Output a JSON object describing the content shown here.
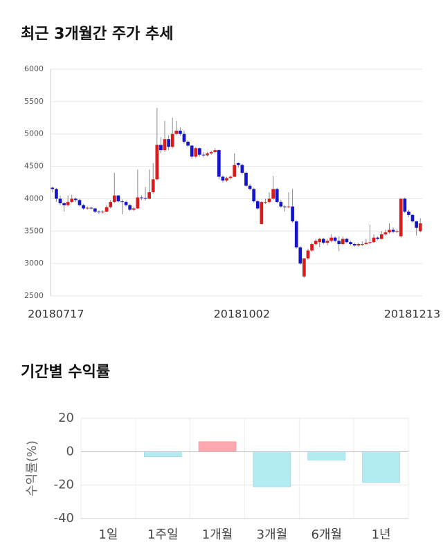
{
  "chart_data": [
    {
      "type": "candlestick",
      "title": "최근 3개월간 주가 추세",
      "up_color": "#d91c1c",
      "down_color": "#1515c8",
      "grid": true,
      "ylim": [
        2500,
        6000
      ],
      "yticks": [
        2500,
        3000,
        3500,
        4000,
        4500,
        5000,
        5500,
        6000
      ],
      "categories": [
        "20180717",
        null,
        null,
        null,
        null,
        null,
        null,
        null,
        null,
        null,
        null,
        null,
        null,
        null,
        null,
        null,
        null,
        null,
        null,
        null,
        null,
        null,
        null,
        null,
        null,
        null,
        null,
        null,
        null,
        null,
        null,
        null,
        null,
        null,
        null,
        null,
        null,
        null,
        null,
        null,
        null,
        null,
        null,
        null,
        null,
        null,
        null,
        null,
        "20181002",
        null,
        null,
        null,
        null,
        null,
        null,
        null,
        null,
        null,
        null,
        null,
        null,
        null,
        null,
        null,
        null,
        null,
        null,
        null,
        null,
        null,
        null,
        null,
        null,
        null,
        null,
        null,
        null,
        null,
        null,
        null,
        null,
        null,
        null,
        null,
        null,
        null,
        null,
        null,
        null,
        null,
        null,
        null,
        "20181213",
        null,
        null,
        null
      ],
      "open": [
        4170,
        4150,
        4000,
        3930,
        3900,
        3950,
        4000,
        3980,
        3900,
        3850,
        3860,
        3850,
        3800,
        3790,
        3800,
        3870,
        3950,
        4050,
        3960,
        3950,
        3900,
        3830,
        3850,
        4020,
        4010,
        4000,
        4100,
        4300,
        4830,
        4750,
        4920,
        4800,
        5000,
        5050,
        5000,
        4880,
        4820,
        4650,
        4780,
        4680,
        4670,
        4700,
        4720,
        4750,
        4340,
        4280,
        4320,
        4340,
        4550,
        4520,
        4400,
        4200,
        4150,
        3960,
        3610,
        3940,
        3950,
        4000,
        4150,
        3950,
        3880,
        3870,
        3880,
        3650,
        3250,
        2800,
        3080,
        3200,
        3300,
        3330,
        3380,
        3320,
        3350,
        3400,
        3350,
        3300,
        3380,
        3330,
        3300,
        3280,
        3290,
        3300,
        3320,
        3330,
        3400,
        3380,
        3450,
        3480,
        3520,
        3490,
        3420,
        4000,
        3800,
        3750,
        3650,
        3500
      ],
      "high": [
        4190,
        4170,
        4050,
        3950,
        4050,
        4060,
        4020,
        4000,
        3920,
        3880,
        3880,
        3860,
        3820,
        3820,
        3900,
        3980,
        4400,
        4060,
        3990,
        3970,
        3920,
        3880,
        4450,
        4050,
        4180,
        4450,
        4550,
        5400,
        4950,
        5200,
        4980,
        5250,
        5200,
        5100,
        5050,
        4900,
        4830,
        4800,
        4790,
        4720,
        4720,
        4740,
        4780,
        4760,
        4360,
        4340,
        4360,
        4700,
        4560,
        4540,
        4420,
        4230,
        4170,
        3980,
        3960,
        4000,
        4100,
        4350,
        4170,
        3980,
        3900,
        4100,
        4150,
        3670,
        3270,
        3080,
        3230,
        3320,
        3380,
        3400,
        3400,
        3380,
        3450,
        3420,
        3420,
        3420,
        3400,
        3350,
        3320,
        3320,
        3340,
        3380,
        3600,
        3450,
        3420,
        3500,
        3520,
        3620,
        3560,
        3530,
        4000,
        4020,
        3830,
        3760,
        3660,
        3700
      ],
      "low": [
        4100,
        3950,
        3900,
        3800,
        3880,
        3930,
        3950,
        3880,
        3830,
        3830,
        3830,
        3780,
        3770,
        3770,
        3790,
        3850,
        3930,
        3940,
        3760,
        3880,
        3810,
        3810,
        3840,
        3980,
        3970,
        3990,
        4080,
        4280,
        4700,
        4720,
        4750,
        4780,
        4980,
        4970,
        4850,
        4800,
        4620,
        4630,
        4650,
        4640,
        4650,
        4680,
        4700,
        4300,
        4250,
        4260,
        4300,
        4330,
        4480,
        4380,
        4180,
        4130,
        3940,
        3830,
        3600,
        3920,
        3930,
        3980,
        3930,
        3860,
        3800,
        3850,
        3630,
        3230,
        2980,
        2780,
        3060,
        3180,
        3280,
        3250,
        3300,
        3280,
        3330,
        3330,
        3190,
        3290,
        3310,
        3280,
        3260,
        3260,
        3270,
        3290,
        3300,
        3320,
        3360,
        3370,
        3430,
        3460,
        3470,
        3470,
        3400,
        3780,
        3720,
        3630,
        3430,
        3480
      ],
      "close": [
        4150,
        4000,
        3930,
        3900,
        3950,
        4000,
        3980,
        3900,
        3850,
        3860,
        3850,
        3800,
        3790,
        3800,
        3870,
        3950,
        4050,
        3960,
        3950,
        3900,
        3830,
        3850,
        4020,
        4010,
        4000,
        4100,
        4300,
        4830,
        4750,
        4920,
        4800,
        5000,
        5050,
        5000,
        4880,
        4820,
        4650,
        4780,
        4680,
        4670,
        4700,
        4720,
        4750,
        4340,
        4280,
        4320,
        4340,
        4520,
        4520,
        4400,
        4200,
        4150,
        3960,
        3850,
        3950,
        3950,
        4000,
        4150,
        3950,
        3880,
        3870,
        3880,
        3650,
        3250,
        3000,
        3080,
        3200,
        3300,
        3350,
        3380,
        3320,
        3350,
        3400,
        3350,
        3300,
        3380,
        3330,
        3300,
        3280,
        3300,
        3300,
        3320,
        3330,
        3400,
        3380,
        3450,
        3480,
        3520,
        3490,
        3500,
        4000,
        3800,
        3750,
        3650,
        3550,
        3620
      ]
    },
    {
      "type": "bar",
      "title": "기간별 수익률",
      "ylabel": "수익률(%)",
      "categories": [
        "1일",
        "1주일",
        "1개월",
        "3개월",
        "6개월",
        "1년"
      ],
      "values": [
        0,
        -3,
        6,
        -21,
        -5,
        -18.5
      ],
      "positive_color": "#ffa8ad",
      "negative_color": "#b3ebf3",
      "grid": true,
      "ylim": [
        -40,
        20
      ],
      "yticks": [
        20,
        0,
        -20,
        -40
      ]
    }
  ]
}
